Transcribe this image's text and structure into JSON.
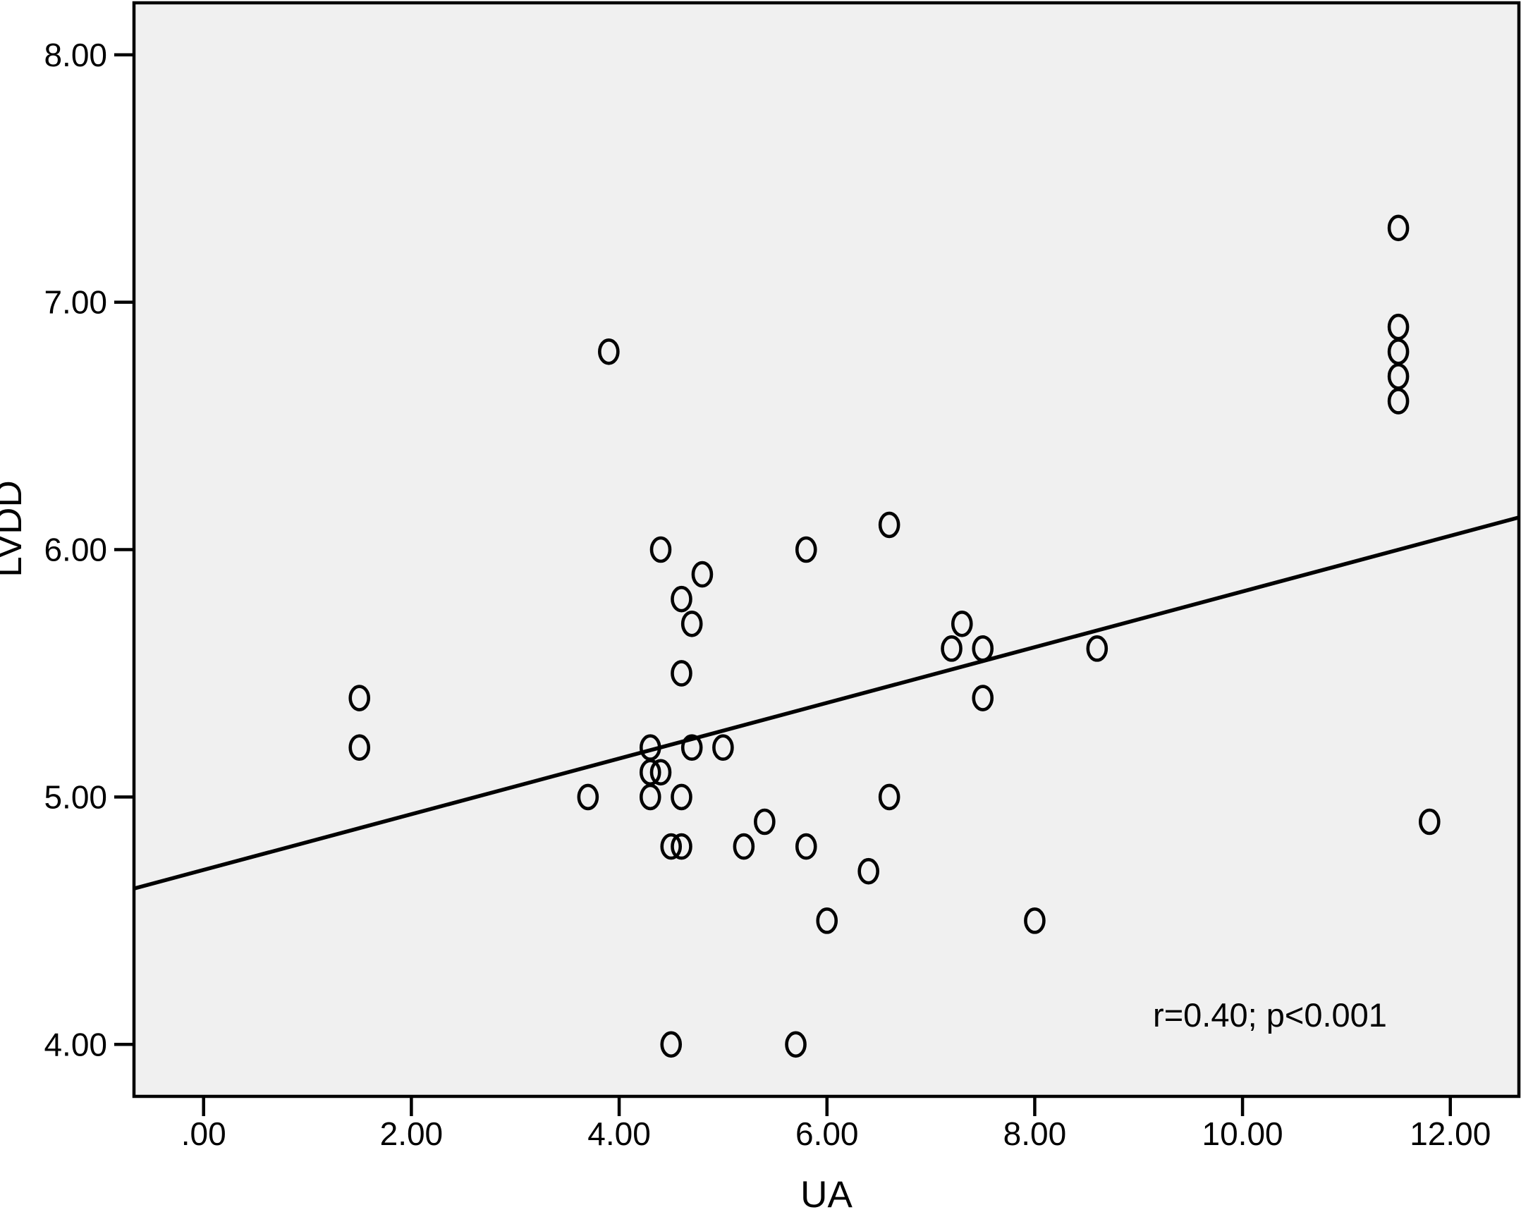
{
  "chart_data": {
    "type": "scatter",
    "title": "",
    "xlabel": "UA",
    "ylabel": "LVDD",
    "xlim": [
      -0.67,
      12.66
    ],
    "ylim": [
      3.79,
      8.21
    ],
    "x_ticks": [
      0,
      2,
      4,
      6,
      8,
      10,
      12
    ],
    "x_tick_labels": [
      ".00",
      "2.00",
      "4.00",
      "6.00",
      "8.00",
      "10.00",
      "12.00"
    ],
    "y_ticks": [
      4,
      5,
      6,
      7,
      8
    ],
    "y_tick_labels": [
      "4.00",
      "5.00",
      "6.00",
      "7.00",
      "8.00"
    ],
    "grid": "off",
    "plot_bg": "#f0f0f0",
    "marker_color": "#000000",
    "marker_style": "open-circle",
    "points": [
      [
        1.5,
        5.4
      ],
      [
        1.5,
        5.2
      ],
      [
        3.7,
        5.0
      ],
      [
        3.9,
        6.8
      ],
      [
        4.3,
        5.2
      ],
      [
        4.3,
        5.1
      ],
      [
        4.4,
        5.1
      ],
      [
        4.3,
        5.0
      ],
      [
        4.6,
        5.0
      ],
      [
        4.4,
        6.0
      ],
      [
        4.8,
        5.9
      ],
      [
        4.6,
        5.8
      ],
      [
        4.7,
        5.7
      ],
      [
        4.6,
        5.5
      ],
      [
        4.7,
        5.2
      ],
      [
        5.0,
        5.2
      ],
      [
        4.5,
        4.8
      ],
      [
        4.6,
        4.8
      ],
      [
        5.2,
        4.8
      ],
      [
        5.8,
        4.8
      ],
      [
        5.4,
        4.9
      ],
      [
        5.8,
        6.0
      ],
      [
        6.6,
        6.1
      ],
      [
        6.4,
        4.7
      ],
      [
        6.0,
        4.5
      ],
      [
        6.6,
        5.0
      ],
      [
        7.3,
        5.7
      ],
      [
        7.2,
        5.6
      ],
      [
        7.5,
        5.6
      ],
      [
        7.5,
        5.4
      ],
      [
        8.6,
        5.6
      ],
      [
        8.0,
        4.5
      ],
      [
        4.5,
        4.0
      ],
      [
        5.7,
        4.0
      ],
      [
        11.5,
        7.3
      ],
      [
        11.5,
        6.9
      ],
      [
        11.5,
        6.8
      ],
      [
        11.5,
        6.7
      ],
      [
        11.5,
        6.6
      ],
      [
        11.8,
        4.9
      ]
    ],
    "regression_line": {
      "x1": -0.67,
      "y1": 4.63,
      "x2": 12.66,
      "y2": 6.13
    },
    "annotation": {
      "text": "r=0.40; p<0.001",
      "x": 10.26,
      "y": 4.11
    }
  }
}
